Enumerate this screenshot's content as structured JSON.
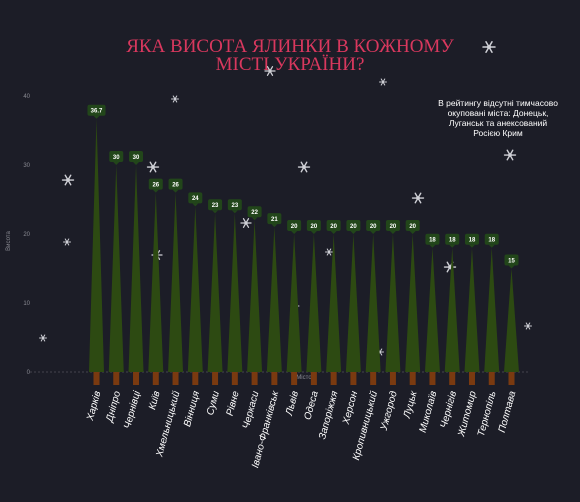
{
  "chart_data": {
    "type": "bar",
    "title": "ЯКА ВИСОТА ЯЛИНКИ В КОЖНОМУ МІСТІ УКРАЇНИ?",
    "title_lines": [
      "ЯКА ВИСОТА ЯЛИНКИ В КОЖНОМУ",
      "МІСТІ УКРАЇНИ?"
    ],
    "annotation_lines": [
      "В рейтингу відсутні тимчасово",
      "окуповані міста: Донецьк,",
      "Луганськ та анексований",
      "Росією Крим"
    ],
    "xlabel": "Місто",
    "ylabel": "Висота",
    "ylim": [
      0,
      40
    ],
    "yticks": [
      0,
      10,
      20,
      30,
      40
    ],
    "grid": false,
    "categories": [
      "Харків",
      "Дніпро",
      "Чернівці",
      "Київ",
      "Хмельницький",
      "Вінниця",
      "Суми",
      "Рівне",
      "Черкаси",
      "Івано-Франківськ",
      "Львів",
      "Одеса",
      "Запоріжжя",
      "Херсон",
      "Кропивницький",
      "Ужгород",
      "Луцьк",
      "Миколаїв",
      "Чернігів",
      "Житомир",
      "Тернопіль",
      "Полтава"
    ],
    "values": [
      36.7,
      30,
      30,
      26,
      26,
      24,
      23,
      23,
      22,
      21,
      20,
      20,
      20,
      20,
      20,
      20,
      20,
      18,
      18,
      18,
      18,
      15
    ],
    "value_labels": [
      "36.7",
      "30",
      "30",
      "26",
      "26",
      "24",
      "23",
      "23",
      "22",
      "21",
      "20",
      "20",
      "20",
      "20",
      "20",
      "20",
      "20",
      "18",
      "18",
      "18",
      "18",
      "15"
    ],
    "colors": {
      "background": "#1c1d27",
      "tree": "#2d4a12",
      "trunk": "#7a3a10",
      "label_box": "#22461a",
      "title": "#d9385e",
      "axis": "#8a8b93"
    }
  }
}
